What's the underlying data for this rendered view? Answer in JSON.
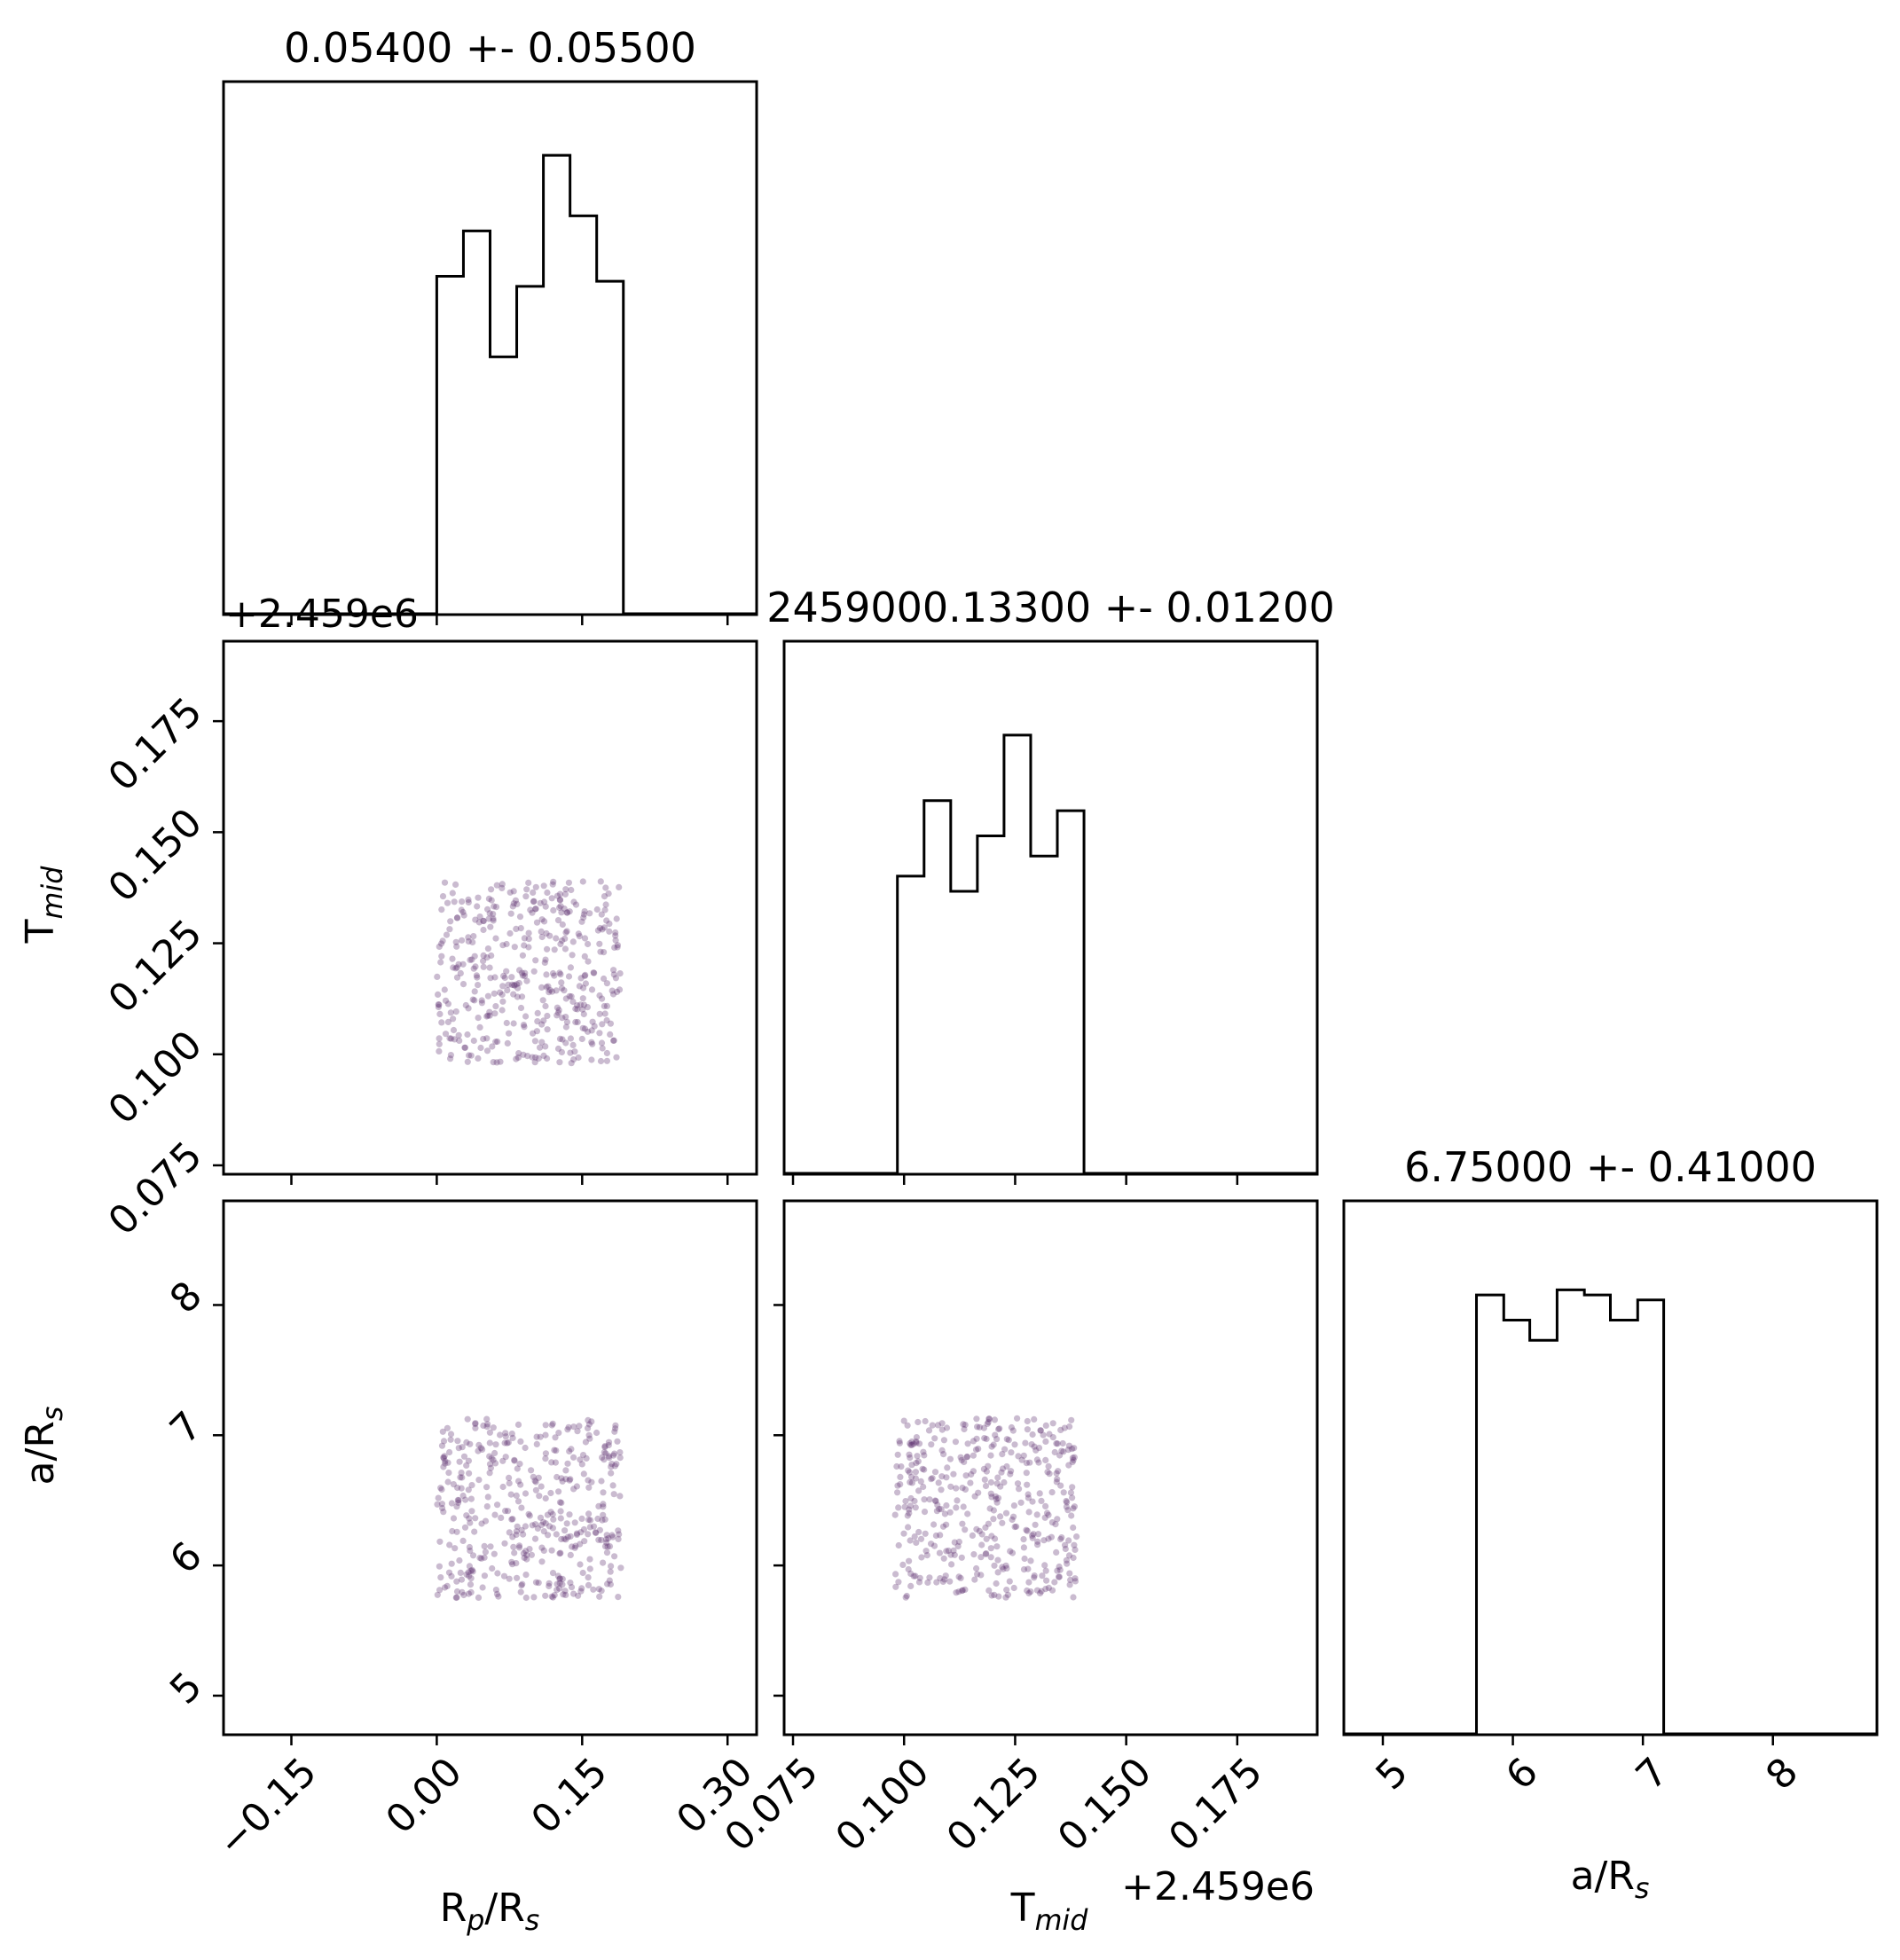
{
  "chart_data": {
    "type": "scatter",
    "parameters": [
      {
        "key": "rp",
        "label_main": "R",
        "label_sub": "p",
        "label_mid": "/R",
        "label_sub2": "s"
      },
      {
        "key": "tmid",
        "label_main": "T",
        "label_sub": "mid",
        "label_mid": "",
        "label_sub2": ""
      },
      {
        "key": "ars",
        "label_main": "a/R",
        "label_sub": "s",
        "label_mid": "",
        "label_sub2": ""
      }
    ],
    "titles": [
      "0.05400 +- 0.05500",
      "2459000.13300 +- 0.01200",
      "6.75000 +- 0.41000"
    ],
    "offset_text": "+2.459e6",
    "axes": {
      "rp": {
        "range": [
          -0.22,
          0.33
        ],
        "ticks": [
          -0.15,
          0.0,
          0.15,
          0.3
        ],
        "tick_labels": [
          "−0.15",
          "0.00",
          "0.15",
          "0.30"
        ]
      },
      "tmid": {
        "range": [
          0.073,
          0.193
        ],
        "ticks": [
          0.075,
          0.1,
          0.125,
          0.15,
          0.175
        ],
        "tick_labels": [
          "0.075",
          "0.100",
          "0.125",
          "0.150",
          "0.175"
        ]
      },
      "ars": {
        "range": [
          4.7,
          8.8
        ],
        "ticks": [
          5,
          6,
          7,
          8
        ],
        "tick_labels": [
          "5",
          "6",
          "7",
          "8"
        ]
      }
    },
    "histograms": {
      "rp": {
        "edges": [
          0.0,
          0.0275,
          0.055,
          0.0825,
          0.11,
          0.1375,
          0.165,
          0.1925
        ],
        "counts": [
          0.67,
          0.76,
          0.51,
          0.65,
          0.91,
          0.79,
          0.66
        ]
      },
      "tmid": {
        "edges": [
          0.0985,
          0.1045,
          0.1105,
          0.1165,
          0.1225,
          0.1285,
          0.1345,
          0.1405
        ],
        "counts": [
          0.59,
          0.74,
          0.56,
          0.67,
          0.87,
          0.63,
          0.72
        ]
      },
      "ars": {
        "edges": [
          5.72,
          5.93,
          6.13,
          6.34,
          6.55,
          6.75,
          6.96,
          7.16
        ],
        "counts": [
          0.87,
          0.82,
          0.78,
          0.88,
          0.87,
          0.82,
          0.86
        ]
      }
    },
    "sample_summary": {
      "n_points": 420,
      "rp_range": [
        0.0,
        0.19
      ],
      "tmid_range": [
        0.098,
        0.139
      ],
      "ars_range": [
        5.75,
        7.13
      ],
      "color": "#5b2a6e"
    },
    "grid": false,
    "legend": "none"
  }
}
